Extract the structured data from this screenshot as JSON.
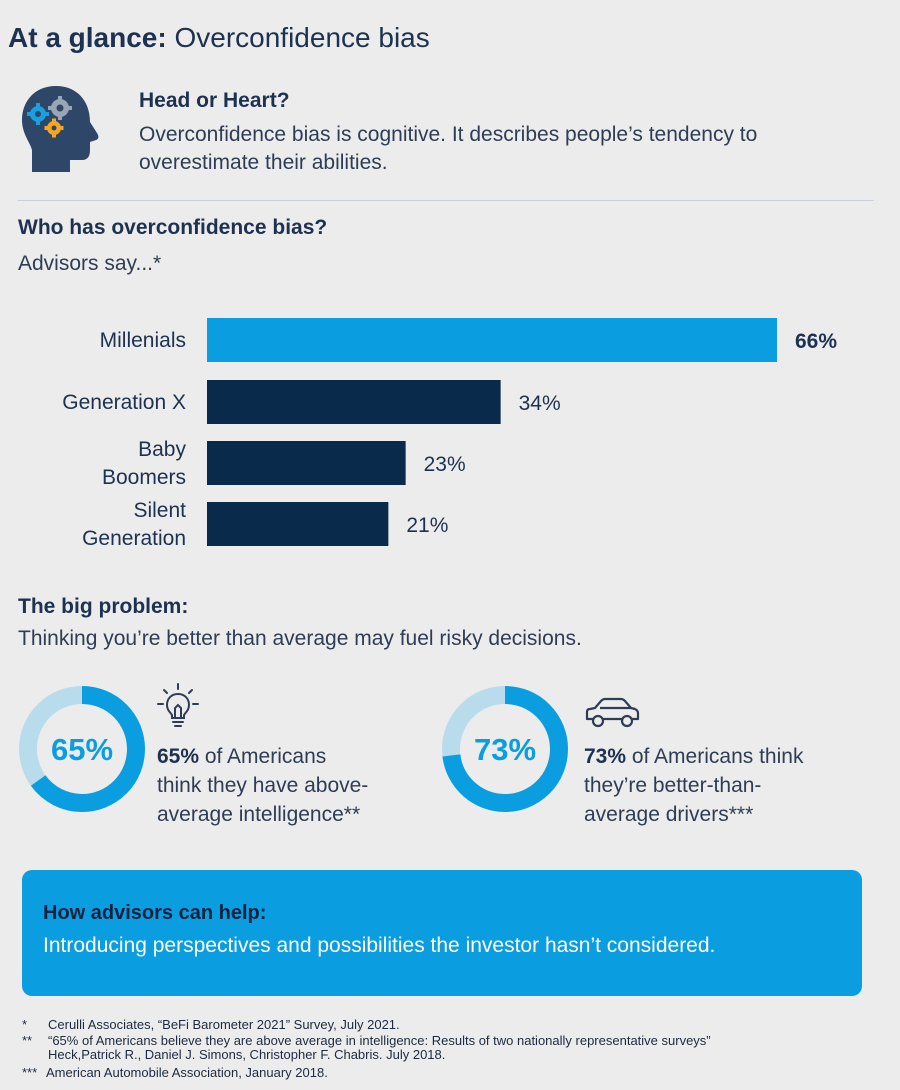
{
  "header": {
    "title_bold": "At a glance:",
    "title_rest": " Overconfidence bias"
  },
  "head_or_heart": {
    "heading": "Head or Heart?",
    "text": "Overconfidence bias is cognitive. It describes people’s tendency to overestimate their abilities."
  },
  "who": {
    "heading": "Who has overconfidence bias?",
    "subheading": "Advisors say...*"
  },
  "chart_data": {
    "type": "bar",
    "orientation": "horizontal",
    "categories": [
      "Millenials",
      "Generation X",
      "Baby Boomers",
      "Silent Generation"
    ],
    "category_lines": [
      [
        "Millenials"
      ],
      [
        "Generation X"
      ],
      [
        "Baby",
        "Boomers"
      ],
      [
        "Silent",
        "Generation"
      ]
    ],
    "values": [
      66,
      34,
      23,
      21
    ],
    "value_labels": [
      "66%",
      "34%",
      "23%",
      "21%"
    ],
    "unit": "%",
    "xlim": [
      0,
      100
    ],
    "grid": false,
    "legend": "none",
    "colors": [
      "#0a9ee0",
      "#0a2a4c",
      "#0a2a4c",
      "#0a2a4c"
    ],
    "highlight_index": 0
  },
  "problem": {
    "heading": "The big problem:",
    "text": "Thinking you’re better than average may fuel risky decisions."
  },
  "stats": [
    {
      "value": 65,
      "label": "65%",
      "icon": "lightbulb-icon",
      "text_bold": "65%",
      "text_lines": [
        " of Americans",
        "think they have above-",
        "average intelligence**"
      ]
    },
    {
      "value": 73,
      "label": "73%",
      "icon": "car-icon",
      "text_bold": "73%",
      "text_lines": [
        " of Americans think",
        "they’re better-than-",
        "average drivers***"
      ]
    }
  ],
  "help": {
    "heading": "How advisors can help:",
    "text": "Introducing perspectives and possibilities the investor hasn’t considered."
  },
  "footnotes": [
    {
      "mark": "*",
      "lines": [
        "Cerulli Associates, “BeFi Barometer 2021” Survey, July 2021."
      ]
    },
    {
      "mark": "**",
      "lines": [
        "“65% of Americans believe they are above average in intelligence: Results of two nationally representative surveys”",
        "Heck,Patrick R., Daniel J. Simons, Christopher F. Chabris. July 2018."
      ]
    },
    {
      "mark": "***",
      "lines": [
        "American Automobile Association, January 2018."
      ]
    }
  ],
  "colors": {
    "accent": "#0a9ee0",
    "navy": "#0a2a4c",
    "donut_track": "#b9dcec",
    "background": "#ececec"
  }
}
